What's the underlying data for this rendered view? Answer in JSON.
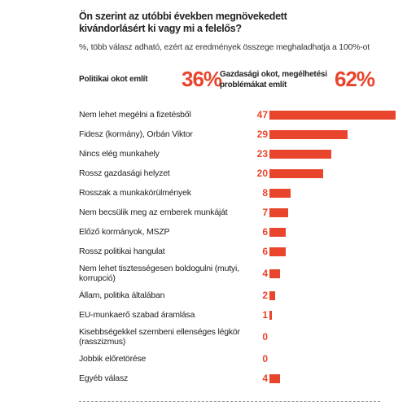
{
  "chart_data": {
    "type": "bar",
    "title": "Ön szerint az utóbbi években megnövekedett kivándorlásért ki vagy mi a felelős?",
    "subtitle": "%, több válasz adható, ezért az eredmények összege meghaladhatja a 100%-ot",
    "annotations": [
      {
        "text": "Politikai okot említ",
        "value": 36,
        "value_label": "36%"
      },
      {
        "text": "Gazdasági okot, megélhetési problémákat említ",
        "value": 62,
        "value_label": "62%"
      }
    ],
    "categories": [
      "Nem lehet megélni a fizetésből",
      "Fidesz (kormány), Orbán Viktor",
      "Nincs elég munkahely",
      "Rossz gazdasági helyzet",
      "Rosszak a munkakörülmények",
      "Nem becsülik meg az emberek munkáját",
      "Előző kormányok, MSZP",
      "Rossz politikai hangulat",
      "Nem lehet tisztességesen boldogulni (mutyi, korrupció)",
      "Állam, politika általában",
      "EU-munkaerő szabad áramlása",
      "Kisebbségekkel szembeni ellenséges légkör (rasszizmus)",
      "Jobbik előretörése",
      "Egyéb válasz"
    ],
    "values": [
      47,
      29,
      23,
      20,
      8,
      7,
      6,
      6,
      4,
      2,
      1,
      0,
      0,
      4
    ],
    "color": "#e8452c"
  }
}
